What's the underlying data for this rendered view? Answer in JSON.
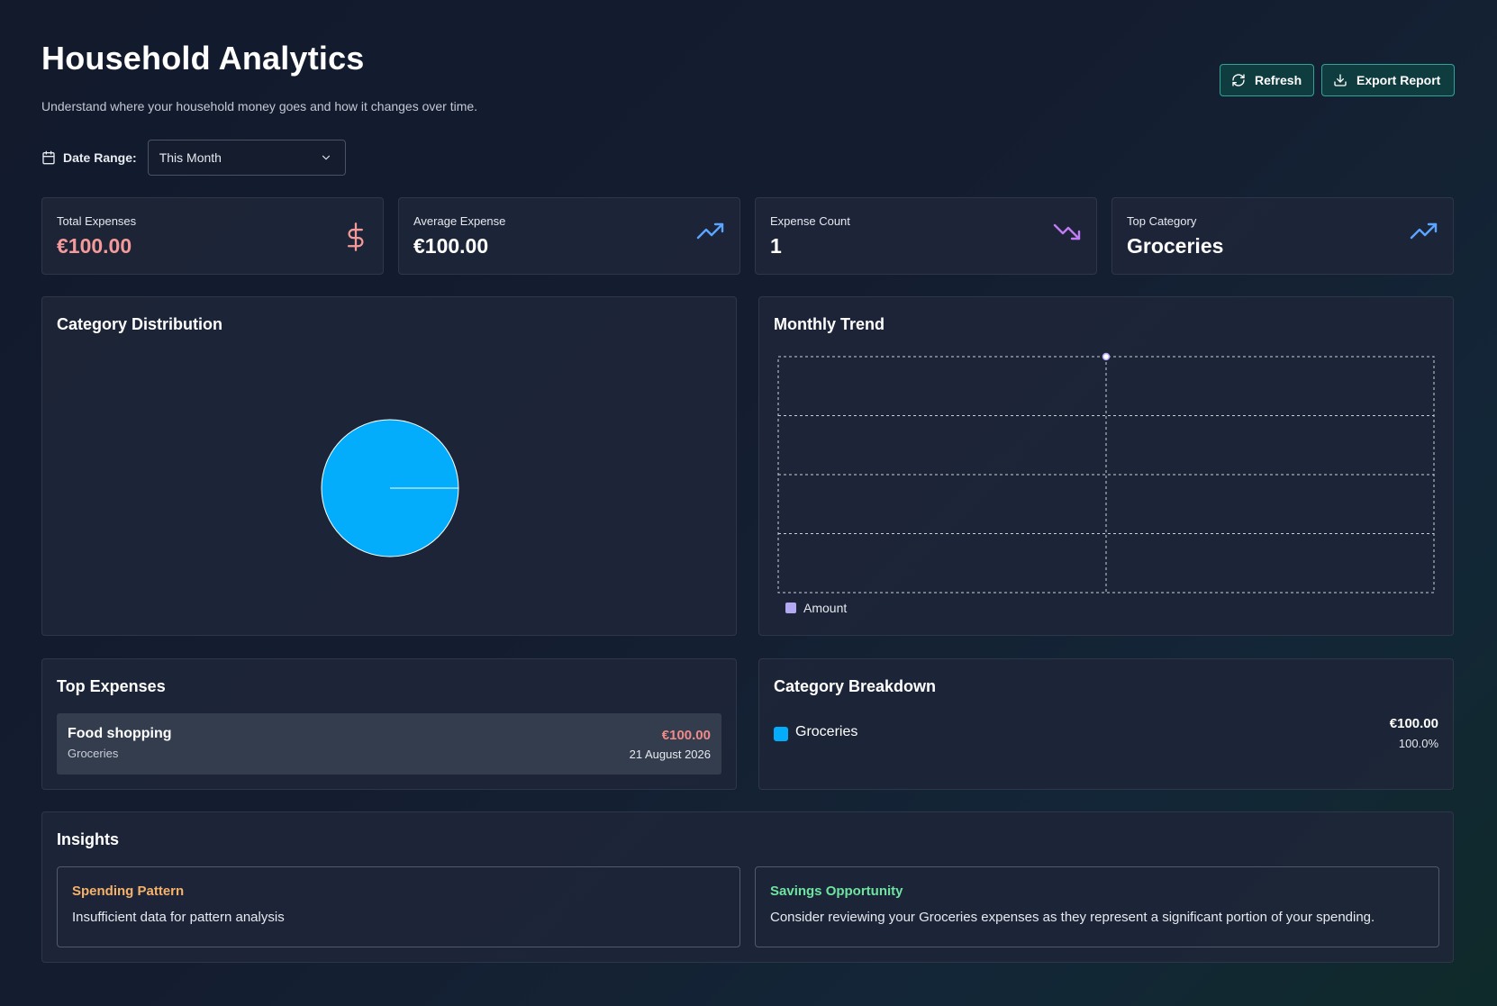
{
  "header": {
    "title": "Household Analytics",
    "subtitle": "Understand where your household money goes and how it changes over time."
  },
  "actions": {
    "refresh_label": "Refresh",
    "export_label": "Export Report"
  },
  "filters": {
    "date_range_label": "Date Range:",
    "date_range_value": "This Month"
  },
  "stats": [
    {
      "label": "Total Expenses",
      "value": "€100.00",
      "icon": "dollar-icon",
      "value_color": "#f59a9a"
    },
    {
      "label": "Average Expense",
      "value": "€100.00",
      "icon": "trending-up-icon"
    },
    {
      "label": "Expense Count",
      "value": "1",
      "icon": "trending-down-icon"
    },
    {
      "label": "Top Category",
      "value": "Groceries",
      "icon": "trending-up-icon"
    }
  ],
  "category_distribution": {
    "title": "Category Distribution",
    "chart_data": {
      "type": "pie",
      "categories": [
        "Groceries"
      ],
      "values": [
        100.0
      ],
      "colors": [
        "#03adfc"
      ]
    }
  },
  "monthly_trend": {
    "title": "Monthly Trend",
    "legend_label": "Amount",
    "legend_color": "#b3a9f2",
    "chart_data": {
      "type": "line",
      "series": [
        {
          "name": "Amount",
          "values": [
            100.0
          ]
        }
      ],
      "grid": true,
      "legend": "bottom-left"
    }
  },
  "top_expenses": {
    "title": "Top Expenses",
    "items": [
      {
        "name": "Food shopping",
        "category": "Groceries",
        "amount": "€100.00",
        "date": "21 August 2026"
      }
    ]
  },
  "category_breakdown": {
    "title": "Category Breakdown",
    "items": [
      {
        "name": "Groceries",
        "amount": "€100.00",
        "percent": "100.0%",
        "color": "#03adfc"
      }
    ]
  },
  "insights": {
    "title": "Insights",
    "items": [
      {
        "title": "Spending Pattern",
        "text": "Insufficient data for pattern analysis",
        "color": "#f5b26b"
      },
      {
        "title": "Savings Opportunity",
        "text": "Consider reviewing your Groceries expenses as they represent a significant portion of your spending.",
        "color": "#6fe3a0"
      }
    ]
  }
}
